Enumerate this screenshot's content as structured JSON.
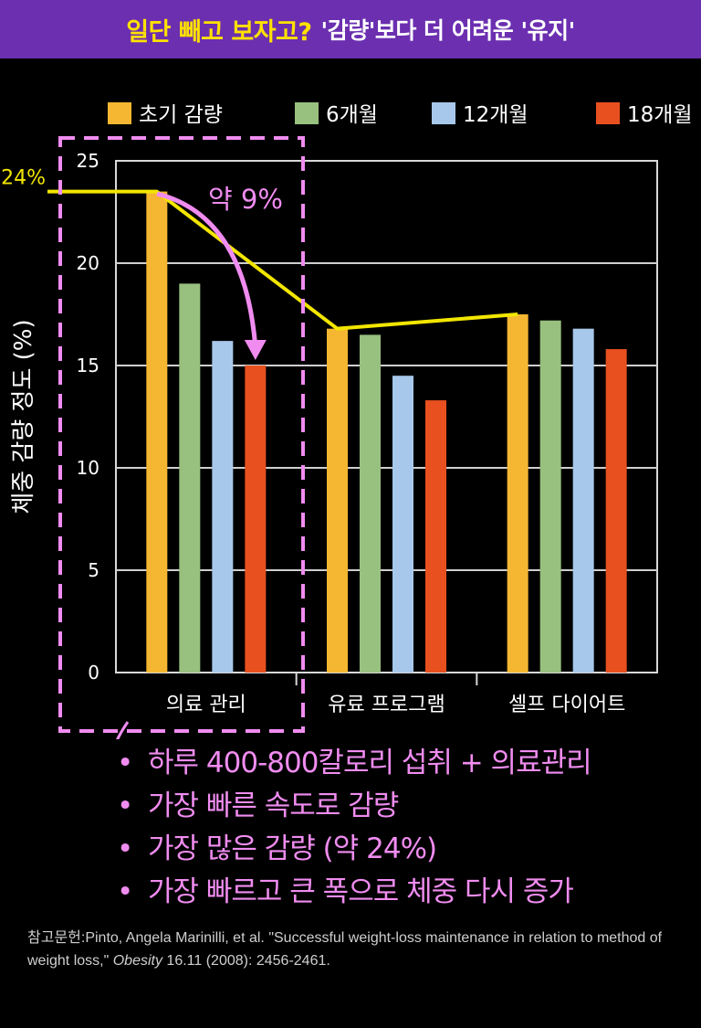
{
  "header": {
    "title": "일단 빼고 보자고?",
    "subtitle": "'감량'보다 더 어려운 '유지'"
  },
  "colors": {
    "banner": "#6b2fb0",
    "title": "#ffe100",
    "highlight": "#f08cf0",
    "trend_line": "#f2e600"
  },
  "chart_data": {
    "type": "bar",
    "ylabel": "체중 감량 정도 (%)",
    "xlabel": "",
    "ylim": [
      0,
      25
    ],
    "yticks": [
      "0",
      "5",
      "10",
      "15",
      "20",
      "25"
    ],
    "grid": true,
    "legend_position": "top",
    "categories": [
      "의료 관리",
      "유료 프로그램",
      "셀프 다이어트"
    ],
    "series": [
      {
        "name": "초기 감량",
        "color": "#f5b731",
        "values": [
          23.5,
          16.8,
          17.5
        ]
      },
      {
        "name": "6개월",
        "color": "#98c07e",
        "values": [
          19.0,
          16.5,
          17.2
        ]
      },
      {
        "name": "12개월",
        "color": "#a7c8ea",
        "values": [
          16.2,
          14.5,
          16.8
        ]
      },
      {
        "name": "18개월",
        "color": "#e8501f",
        "values": [
          15.0,
          13.3,
          15.8
        ]
      }
    ],
    "annotations": {
      "start_label": "24%",
      "drop_label": "약 9%"
    }
  },
  "bullets": [
    "하루 400-800칼로리 섭취 + 의료관리",
    "가장 빠른 속도로 감량",
    "가장 많은 감량 (약 24%)",
    "가장 빠르고 큰 폭으로  체중 다시 증가"
  ],
  "bullet_marker": "•",
  "reference": {
    "before": "참고문헌:Pinto, Angela Marinilli,  et al. \"Successful weight-loss maintenance  in relation to method of weight loss,\" ",
    "journal": "Obesity",
    "after": " 16.11 (2008):  2456-2461."
  }
}
